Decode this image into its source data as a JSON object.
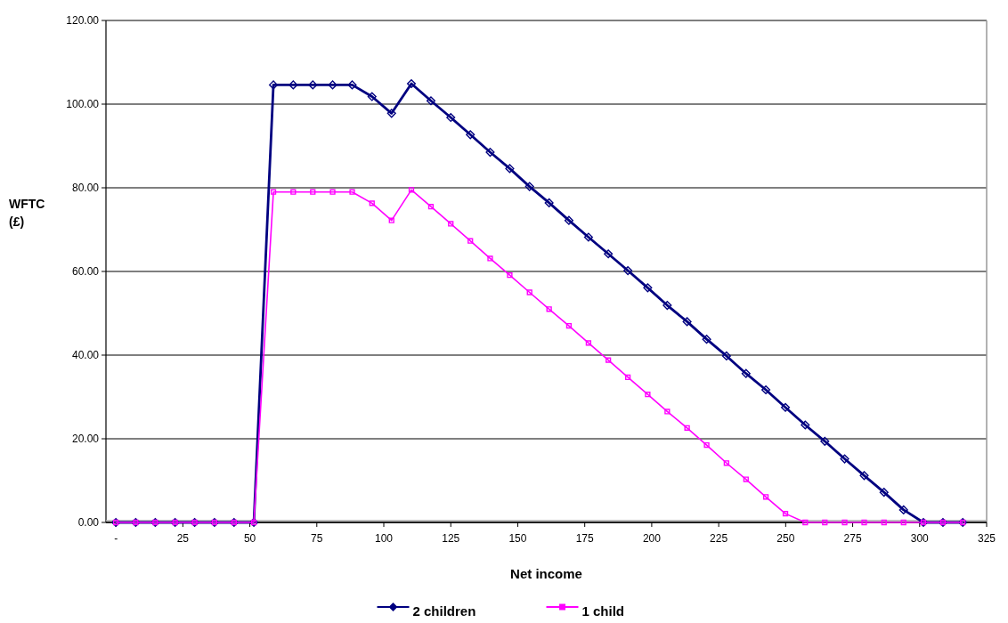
{
  "chart_data": {
    "type": "line",
    "xlabel": "Net income",
    "ylabel": "WFTC (£)",
    "x": [
      0,
      7.4,
      14.7,
      22.1,
      29.4,
      36.8,
      44.1,
      51.5,
      58.8,
      66.2,
      73.5,
      80.9,
      88.2,
      95.6,
      102.9,
      110.3,
      117.6,
      125,
      132.3,
      139.7,
      147,
      154.4,
      161.7,
      169.1,
      176.4,
      183.8,
      191.1,
      198.5,
      205.8,
      213.2,
      220.5,
      227.9,
      235.2,
      242.6,
      249.9,
      257.3,
      264.6,
      272,
      279.3,
      286.7,
      294,
      301.4,
      308.7,
      316.1
    ],
    "series": [
      {
        "name": "2 children",
        "color": "#000080",
        "marker": "diamond",
        "values": [
          0,
          0,
          0,
          0,
          0,
          0,
          0,
          0,
          104.6,
          104.6,
          104.6,
          104.6,
          104.6,
          101.8,
          97.8,
          104.9,
          100.8,
          96.8,
          92.7,
          88.5,
          84.6,
          80.3,
          76.4,
          72.2,
          68.2,
          64.2,
          60.2,
          56.1,
          51.9,
          48.0,
          43.8,
          39.8,
          35.6,
          31.7,
          27.5,
          23.3,
          19.4,
          15.2,
          11.2,
          7.2,
          3.0,
          0,
          0,
          0
        ]
      },
      {
        "name": "1 child",
        "color": "#ff00ff",
        "marker": "square",
        "values": [
          0,
          0,
          0,
          0,
          0,
          0,
          0,
          0,
          79.0,
          79.0,
          79.0,
          79.0,
          79.0,
          76.3,
          72.2,
          79.5,
          75.5,
          71.4,
          67.3,
          63.1,
          59.1,
          55.0,
          51.0,
          47.0,
          42.9,
          38.8,
          34.7,
          30.6,
          26.5,
          22.6,
          18.5,
          14.2,
          10.3,
          6.1,
          2.1,
          0,
          0,
          0,
          0,
          0,
          0,
          0,
          0,
          0
        ]
      }
    ],
    "xlim": [
      -3.7,
      325
    ],
    "xticks": [
      {
        "value": 0,
        "label": "-"
      },
      25,
      50,
      75,
      100,
      125,
      150,
      175,
      200,
      225,
      250,
      275,
      300,
      325
    ],
    "ylim": [
      0,
      120
    ],
    "yticks": [
      {
        "value": 0,
        "label": "0.00"
      },
      {
        "value": 20,
        "label": "20.00"
      },
      {
        "value": 40,
        "label": "40.00"
      },
      {
        "value": 60,
        "label": "60.00"
      },
      {
        "value": 80,
        "label": "80.00"
      },
      {
        "value": 100,
        "label": "100.00"
      },
      {
        "value": 120,
        "label": "120.00"
      }
    ],
    "grid": "y",
    "legend": "bottom",
    "line_style": "solid"
  }
}
